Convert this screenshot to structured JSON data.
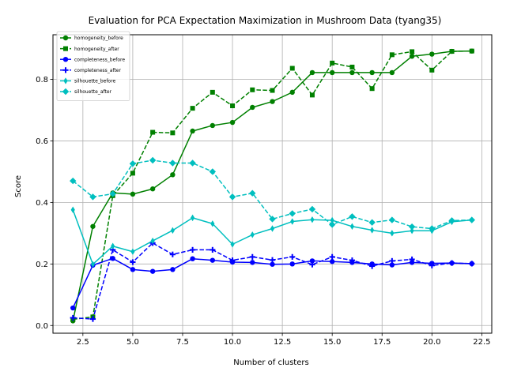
{
  "chart_data": {
    "type": "line",
    "title": "Evaluation for PCA Expectation Maximization in Mushroom Data (tyang35)",
    "xlabel": "Number of clusters",
    "ylabel": "Score",
    "xlim": [
      1.0,
      23.0
    ],
    "ylim": [
      -0.025,
      0.945
    ],
    "xticks": [
      2.5,
      5.0,
      7.5,
      10.0,
      12.5,
      15.0,
      17.5,
      20.0,
      22.5
    ],
    "xtick_labels": [
      "2.5",
      "5.0",
      "7.5",
      "10.0",
      "12.5",
      "15.0",
      "17.5",
      "20.0",
      "22.5"
    ],
    "yticks": [
      0.0,
      0.2,
      0.4,
      0.6,
      0.8
    ],
    "ytick_labels": [
      "0.0",
      "0.2",
      "0.4",
      "0.6",
      "0.8"
    ],
    "grid": true,
    "legend_position": "top-left",
    "x": [
      2,
      3,
      4,
      5,
      6,
      7,
      8,
      9,
      10,
      11,
      12,
      13,
      14,
      15,
      16,
      17,
      18,
      19,
      20,
      21,
      22
    ],
    "series": [
      {
        "name": "homogeneity_before",
        "color": "#008000",
        "line": "solid",
        "marker": "circle",
        "values": [
          0.015,
          0.322,
          0.431,
          0.427,
          0.444,
          0.49,
          0.632,
          0.65,
          0.66,
          0.709,
          0.728,
          0.758,
          0.822,
          0.822,
          0.822,
          0.822,
          0.822,
          0.875,
          0.882,
          0.891,
          0.892
        ]
      },
      {
        "name": "homogeneity_after",
        "color": "#008000",
        "line": "dashed",
        "marker": "square",
        "values": [
          0.02,
          0.028,
          0.422,
          0.495,
          0.628,
          0.626,
          0.706,
          0.758,
          0.714,
          0.766,
          0.764,
          0.836,
          0.749,
          0.853,
          0.84,
          0.77,
          0.88,
          0.89,
          0.83,
          0.891,
          0.892
        ]
      },
      {
        "name": "completeness_before",
        "color": "#0000ff",
        "line": "solid",
        "marker": "circle",
        "values": [
          0.057,
          0.196,
          0.218,
          0.182,
          0.176,
          0.182,
          0.217,
          0.212,
          0.206,
          0.205,
          0.199,
          0.2,
          0.21,
          0.208,
          0.205,
          0.2,
          0.197,
          0.205,
          0.202,
          0.203,
          0.201
        ]
      },
      {
        "name": "completeness_after",
        "color": "#0000ff",
        "line": "dashed",
        "marker": "plus",
        "values": [
          0.025,
          0.021,
          0.246,
          0.206,
          0.268,
          0.231,
          0.246,
          0.246,
          0.212,
          0.223,
          0.213,
          0.223,
          0.198,
          0.223,
          0.212,
          0.193,
          0.21,
          0.215,
          0.195,
          0.203,
          0.201
        ]
      },
      {
        "name": "silhouette_before",
        "color": "#00bfbf",
        "line": "solid",
        "marker": "thin-diamond",
        "values": [
          0.376,
          0.199,
          0.258,
          0.24,
          0.275,
          0.309,
          0.35,
          0.331,
          0.264,
          0.295,
          0.315,
          0.338,
          0.344,
          0.342,
          0.322,
          0.31,
          0.3,
          0.308,
          0.308,
          0.337,
          0.343
        ]
      },
      {
        "name": "silhouette_after",
        "color": "#00bfbf",
        "line": "dashed",
        "marker": "diamond",
        "values": [
          0.47,
          0.418,
          0.428,
          0.526,
          0.537,
          0.528,
          0.528,
          0.5,
          0.418,
          0.43,
          0.346,
          0.364,
          0.378,
          0.328,
          0.354,
          0.335,
          0.343,
          0.321,
          0.315,
          0.341,
          0.343
        ]
      }
    ]
  }
}
